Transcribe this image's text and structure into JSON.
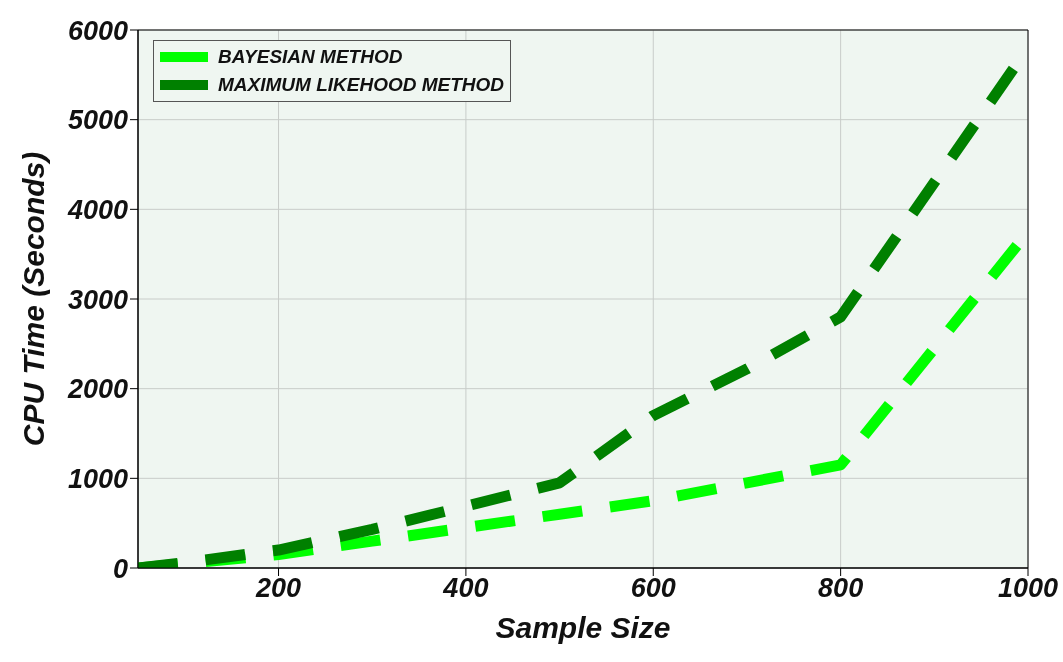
{
  "chart_data": {
    "type": "line",
    "xlabel": "Sample Size",
    "ylabel": "CPU Time  (Seconds)",
    "x": [
      50,
      100,
      200,
      300,
      400,
      500,
      600,
      700,
      800,
      900,
      1000
    ],
    "series": [
      {
        "name": "BAYESIAN METHOD",
        "color": "#00ff00",
        "values": [
          0,
          50,
          150,
          300,
          450,
          600,
          750,
          950,
          1150,
          2450,
          3750
        ]
      },
      {
        "name": "MAXIMUM LIKEHOOD METHOD",
        "color": "#008000",
        "values": [
          0,
          60,
          200,
          430,
          690,
          950,
          1700,
          2220,
          2800,
          4300,
          5800
        ]
      }
    ],
    "xlim": [
      50,
      1000
    ],
    "xticks": [
      200,
      400,
      600,
      800,
      1000
    ],
    "ylim": [
      0,
      6000
    ],
    "yticks": [
      0,
      1000,
      2000,
      3000,
      4000,
      5000,
      6000
    ],
    "grid": true,
    "legend": "top left",
    "line_style": "dashed",
    "marker": "none"
  }
}
